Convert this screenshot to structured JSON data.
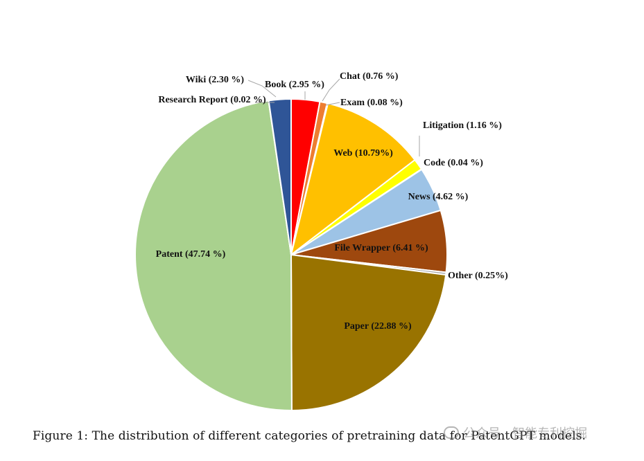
{
  "caption": "Figure 1:   The distribution of different categories of pretraining data for PatentGPT models.",
  "watermark": {
    "text": "公众号 · 智能专利挖掘",
    "icon": "wechat-icon"
  },
  "chart_data": {
    "type": "pie",
    "start_angle_deg": 0,
    "direction": "clockwise",
    "slices": [
      {
        "name": "Book",
        "value": 2.95,
        "label": "Book (2.95 %)",
        "color": "#ff0000"
      },
      {
        "name": "Chat",
        "value": 0.76,
        "label": "Chat (0.76 %)",
        "color": "#ed7d31"
      },
      {
        "name": "Exam",
        "value": 0.08,
        "label": "Exam (0.08 %)",
        "color": "#d9d9d9"
      },
      {
        "name": "Web",
        "value": 10.79,
        "label": "Web (10.79%)",
        "color": "#ffc000"
      },
      {
        "name": "Litigation",
        "value": 1.16,
        "label": "Litigation (1.16 %)",
        "color": "#ffff00"
      },
      {
        "name": "Code",
        "value": 0.04,
        "label": "Code (0.04 %)",
        "color": "#5b9bd5"
      },
      {
        "name": "News",
        "value": 4.62,
        "label": "News (4.62 %)",
        "color": "#9dc3e6"
      },
      {
        "name": "File Wrapper",
        "value": 6.41,
        "label": "File Wrapper (6.41 %)",
        "color": "#9e480e"
      },
      {
        "name": "Other",
        "value": 0.25,
        "label": "Other (0.25%)",
        "color": "#a6a6a6"
      },
      {
        "name": "Paper",
        "value": 22.88,
        "label": "Paper (22.88 %)",
        "color": "#997300"
      },
      {
        "name": "Patent",
        "value": 47.74,
        "label": "Patent (47.74 %)",
        "color": "#a9d18e"
      },
      {
        "name": "Research Report",
        "value": 0.02,
        "label": "Research Report (0.02 %)",
        "color": "#7f7f7f"
      },
      {
        "name": "Wiki",
        "value": 2.3,
        "label": "Wiki (2.30 %)",
        "color": "#2f5597"
      }
    ]
  }
}
